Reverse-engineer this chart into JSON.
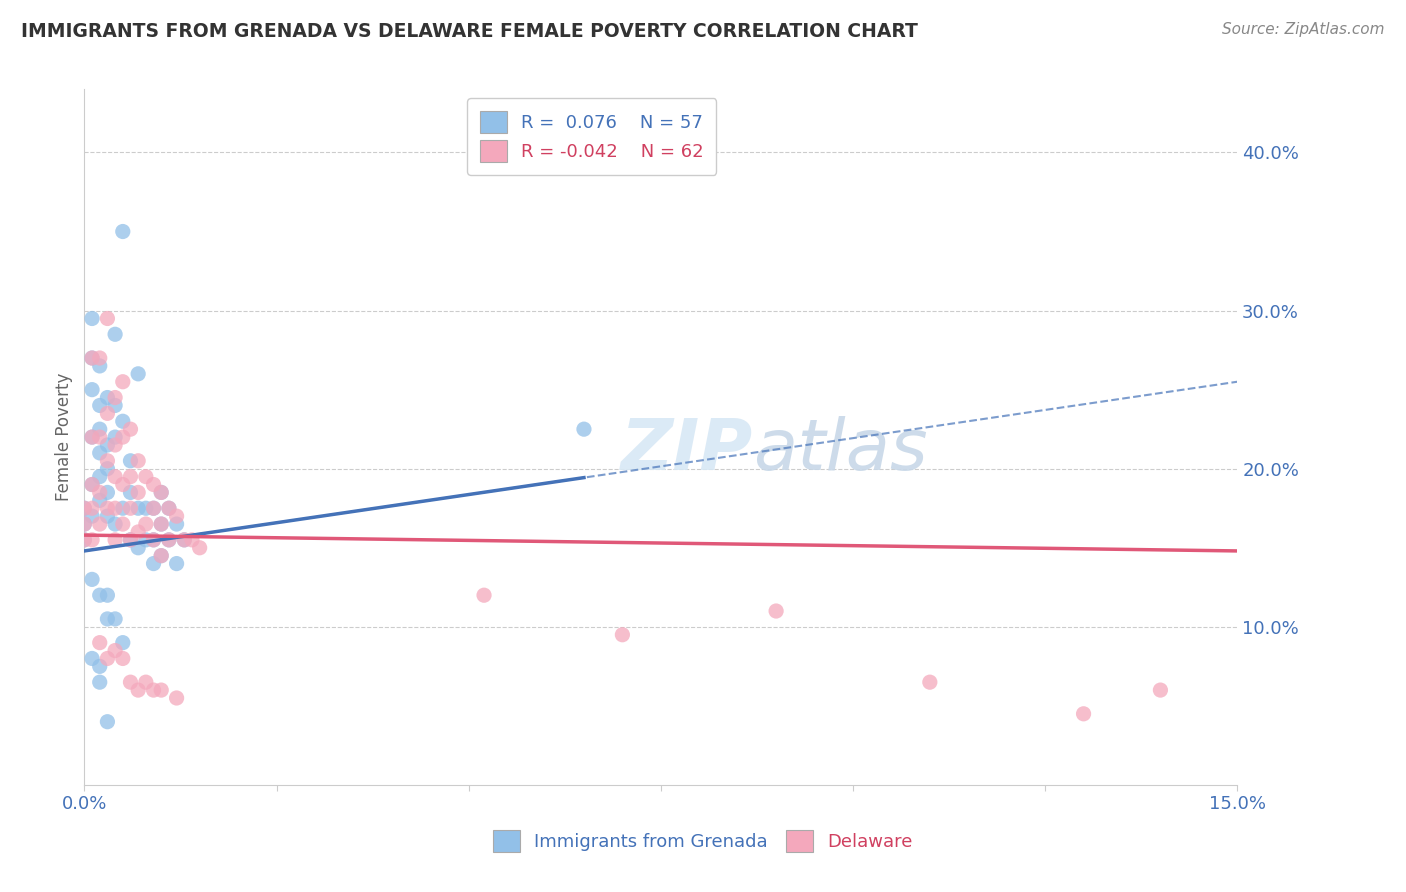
{
  "title": "IMMIGRANTS FROM GRENADA VS DELAWARE FEMALE POVERTY CORRELATION CHART",
  "source": "Source: ZipAtlas.com",
  "ylabel": "Female Poverty",
  "xlim": [
    0.0,
    0.15
  ],
  "ylim": [
    0.0,
    0.44
  ],
  "yticks": [
    0.1,
    0.2,
    0.3,
    0.4
  ],
  "yticklabels": [
    "10.0%",
    "20.0%",
    "30.0%",
    "40.0%"
  ],
  "legend_label1": "R =  0.076    N = 57",
  "legend_label2": "R = -0.042    N = 62",
  "series1_color": "#92c0e8",
  "series2_color": "#f4a8bc",
  "trendline1_color": "#4472b8",
  "trendline2_color": "#e05878",
  "watermark": "ZIPatlas",
  "trendline1_x0": 0.0,
  "trendline1_y0": 0.148,
  "trendline1_x1": 0.15,
  "trendline1_y1": 0.255,
  "trendline2_x0": 0.0,
  "trendline2_y0": 0.158,
  "trendline2_x1": 0.15,
  "trendline2_y1": 0.148,
  "blue_x": [
    0.0,
    0.0,
    0.0,
    0.001,
    0.001,
    0.001,
    0.001,
    0.001,
    0.001,
    0.002,
    0.002,
    0.002,
    0.002,
    0.002,
    0.002,
    0.003,
    0.003,
    0.003,
    0.003,
    0.003,
    0.004,
    0.004,
    0.004,
    0.004,
    0.005,
    0.005,
    0.005,
    0.006,
    0.006,
    0.006,
    0.007,
    0.007,
    0.007,
    0.008,
    0.008,
    0.009,
    0.009,
    0.009,
    0.01,
    0.01,
    0.01,
    0.011,
    0.011,
    0.012,
    0.012,
    0.013,
    0.065,
    0.001,
    0.002,
    0.003,
    0.003,
    0.004,
    0.005,
    0.001,
    0.002,
    0.002,
    0.003
  ],
  "blue_y": [
    0.175,
    0.165,
    0.155,
    0.295,
    0.27,
    0.25,
    0.22,
    0.19,
    0.17,
    0.265,
    0.24,
    0.225,
    0.21,
    0.195,
    0.18,
    0.245,
    0.215,
    0.2,
    0.185,
    0.17,
    0.285,
    0.24,
    0.22,
    0.165,
    0.35,
    0.23,
    0.175,
    0.205,
    0.185,
    0.155,
    0.26,
    0.175,
    0.15,
    0.175,
    0.155,
    0.175,
    0.155,
    0.14,
    0.185,
    0.165,
    0.145,
    0.175,
    0.155,
    0.165,
    0.14,
    0.155,
    0.225,
    0.13,
    0.12,
    0.12,
    0.105,
    0.105,
    0.09,
    0.08,
    0.075,
    0.065,
    0.04
  ],
  "pink_x": [
    0.0,
    0.0,
    0.0,
    0.001,
    0.001,
    0.001,
    0.001,
    0.001,
    0.002,
    0.002,
    0.002,
    0.002,
    0.003,
    0.003,
    0.003,
    0.003,
    0.004,
    0.004,
    0.004,
    0.004,
    0.004,
    0.005,
    0.005,
    0.005,
    0.005,
    0.006,
    0.006,
    0.006,
    0.006,
    0.007,
    0.007,
    0.007,
    0.008,
    0.008,
    0.009,
    0.009,
    0.009,
    0.01,
    0.01,
    0.01,
    0.011,
    0.011,
    0.012,
    0.013,
    0.014,
    0.015,
    0.052,
    0.07,
    0.09,
    0.11,
    0.13,
    0.14,
    0.002,
    0.003,
    0.004,
    0.005,
    0.006,
    0.007,
    0.008,
    0.009,
    0.01,
    0.012
  ],
  "pink_y": [
    0.175,
    0.165,
    0.155,
    0.27,
    0.22,
    0.19,
    0.175,
    0.155,
    0.27,
    0.22,
    0.185,
    0.165,
    0.295,
    0.235,
    0.205,
    0.175,
    0.245,
    0.215,
    0.195,
    0.175,
    0.155,
    0.255,
    0.22,
    0.19,
    0.165,
    0.225,
    0.195,
    0.175,
    0.155,
    0.205,
    0.185,
    0.16,
    0.195,
    0.165,
    0.19,
    0.175,
    0.155,
    0.185,
    0.165,
    0.145,
    0.175,
    0.155,
    0.17,
    0.155,
    0.155,
    0.15,
    0.12,
    0.095,
    0.11,
    0.065,
    0.045,
    0.06,
    0.09,
    0.08,
    0.085,
    0.08,
    0.065,
    0.06,
    0.065,
    0.06,
    0.06,
    0.055
  ]
}
